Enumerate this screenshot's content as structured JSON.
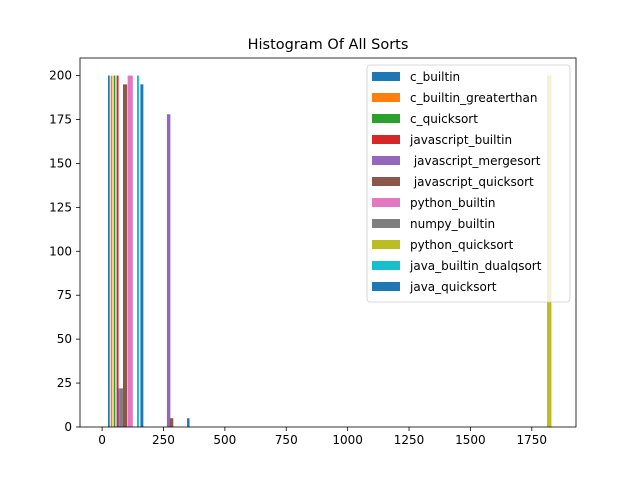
{
  "chart_data": {
    "type": "bar",
    "title": "Histogram Of All Sorts",
    "xlabel": "",
    "ylabel": "",
    "xlim": [
      -90,
      1930
    ],
    "ylim": [
      0,
      210
    ],
    "xticks": [
      0,
      250,
      500,
      750,
      1000,
      1250,
      1500,
      1750
    ],
    "yticks": [
      0,
      25,
      50,
      75,
      100,
      125,
      150,
      175,
      200
    ],
    "grid": false,
    "legend_position": "top-right",
    "series": [
      {
        "name": "c_builtin",
        "color": "#1f77b4",
        "bars": [
          {
            "x0": 24,
            "x1": 31,
            "y": 200
          }
        ]
      },
      {
        "name": "c_builtin_greaterthan",
        "color": "#ff7f0e",
        "bars": [
          {
            "x0": 35,
            "x1": 42,
            "y": 200
          }
        ]
      },
      {
        "name": "c_quicksort",
        "color": "#2ca02c",
        "bars": [
          {
            "x0": 47,
            "x1": 54,
            "y": 200
          }
        ]
      },
      {
        "name": "javascript_builtin",
        "color": "#d62728",
        "bars": [
          {
            "x0": 59,
            "x1": 67,
            "y": 200
          }
        ]
      },
      {
        "name": " javascript_mergesort",
        "color": "#9467bd",
        "bars": [
          {
            "x0": 264,
            "x1": 278,
            "y": 178
          },
          {
            "x0": 66,
            "x1": 72,
            "y": 22
          }
        ]
      },
      {
        "name": " javascript_quicksort",
        "color": "#8c564b",
        "bars": [
          {
            "x0": 85,
            "x1": 102,
            "y": 195
          },
          {
            "x0": 276,
            "x1": 290,
            "y": 5
          }
        ]
      },
      {
        "name": "python_builtin",
        "color": "#e377c2",
        "bars": [
          {
            "x0": 104,
            "x1": 125,
            "y": 200
          }
        ]
      },
      {
        "name": "numpy_builtin",
        "color": "#7f7f7f",
        "bars": [
          {
            "x0": 72,
            "x1": 85,
            "y": 22
          }
        ]
      },
      {
        "name": "python_quicksort",
        "color": "#bcbd22",
        "bars": [
          {
            "x0": 1812,
            "x1": 1830,
            "y": 200
          }
        ]
      },
      {
        "name": "java_builtin_dualqsort",
        "color": "#17becf",
        "bars": [
          {
            "x0": 142,
            "x1": 150,
            "y": 200
          }
        ]
      },
      {
        "name": "java_quicksort",
        "color": "#1f77b4",
        "bars": [
          {
            "x0": 156,
            "x1": 168,
            "y": 195
          },
          {
            "x0": 346,
            "x1": 356,
            "y": 5
          }
        ]
      }
    ]
  }
}
